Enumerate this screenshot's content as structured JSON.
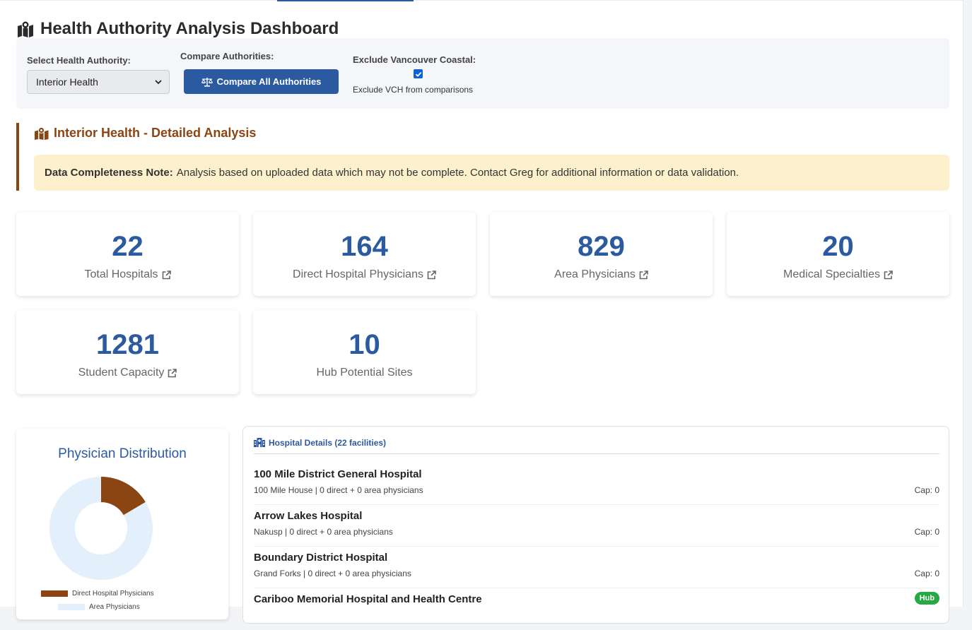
{
  "header": {
    "title": "Health Authority Analysis Dashboard",
    "title_icon": "map-marked-icon"
  },
  "controls": {
    "select_label": "Select Health Authority:",
    "select_value": "Interior Health",
    "compare_label": "Compare Authorities:",
    "compare_button": "Compare All Authorities",
    "exclude_label": "Exclude Vancouver Coastal:",
    "exclude_checked": true,
    "exclude_help": "Exclude VCH from comparisons"
  },
  "analysis": {
    "title": "Interior Health - Detailed Analysis",
    "note_bold": "Data Completeness Note:",
    "note_text": "Analysis based on uploaded data which may not be complete. Contact Greg for additional information or data validation."
  },
  "stats": [
    {
      "value": "22",
      "label": "Total Hospitals",
      "link": true
    },
    {
      "value": "164",
      "label": "Direct Hospital Physicians",
      "link": true
    },
    {
      "value": "829",
      "label": "Area Physicians",
      "link": true
    },
    {
      "value": "20",
      "label": "Medical Specialties",
      "link": true
    },
    {
      "value": "1281",
      "label": "Student Capacity",
      "link": true
    },
    {
      "value": "10",
      "label": "Hub Potential Sites",
      "link": false
    }
  ],
  "chart": {
    "title": "Physician Distribution",
    "legend": [
      "Direct Hospital Physicians",
      "Area Physicians"
    ],
    "colors": [
      "#8b4513",
      "#e3f0fc"
    ]
  },
  "chart_data": {
    "type": "pie",
    "title": "Physician Distribution",
    "categories": [
      "Direct Hospital Physicians",
      "Area Physicians"
    ],
    "values": [
      164,
      829
    ]
  },
  "hospitals": {
    "title": "Hospital Details (22 facilities)",
    "rows": [
      {
        "name": "100 Mile District General Hospital",
        "meta": "100 Mile House | 0 direct + 0 area physicians",
        "cap": "Cap: 0"
      },
      {
        "name": "Arrow Lakes Hospital",
        "meta": "Nakusp | 0 direct + 0 area physicians",
        "cap": "Cap: 0"
      },
      {
        "name": "Boundary District Hospital",
        "meta": "Grand Forks | 0 direct + 0 area physicians",
        "cap": "Cap: 0"
      },
      {
        "name": "Cariboo Memorial Hospital and Health Centre",
        "meta": "",
        "cap": "",
        "badge": "Hub"
      }
    ]
  },
  "colors": {
    "accent": "#2c5aa0",
    "brown": "#8b4513",
    "note_bg": "#fdf1cd",
    "hub_green": "#28a745"
  }
}
